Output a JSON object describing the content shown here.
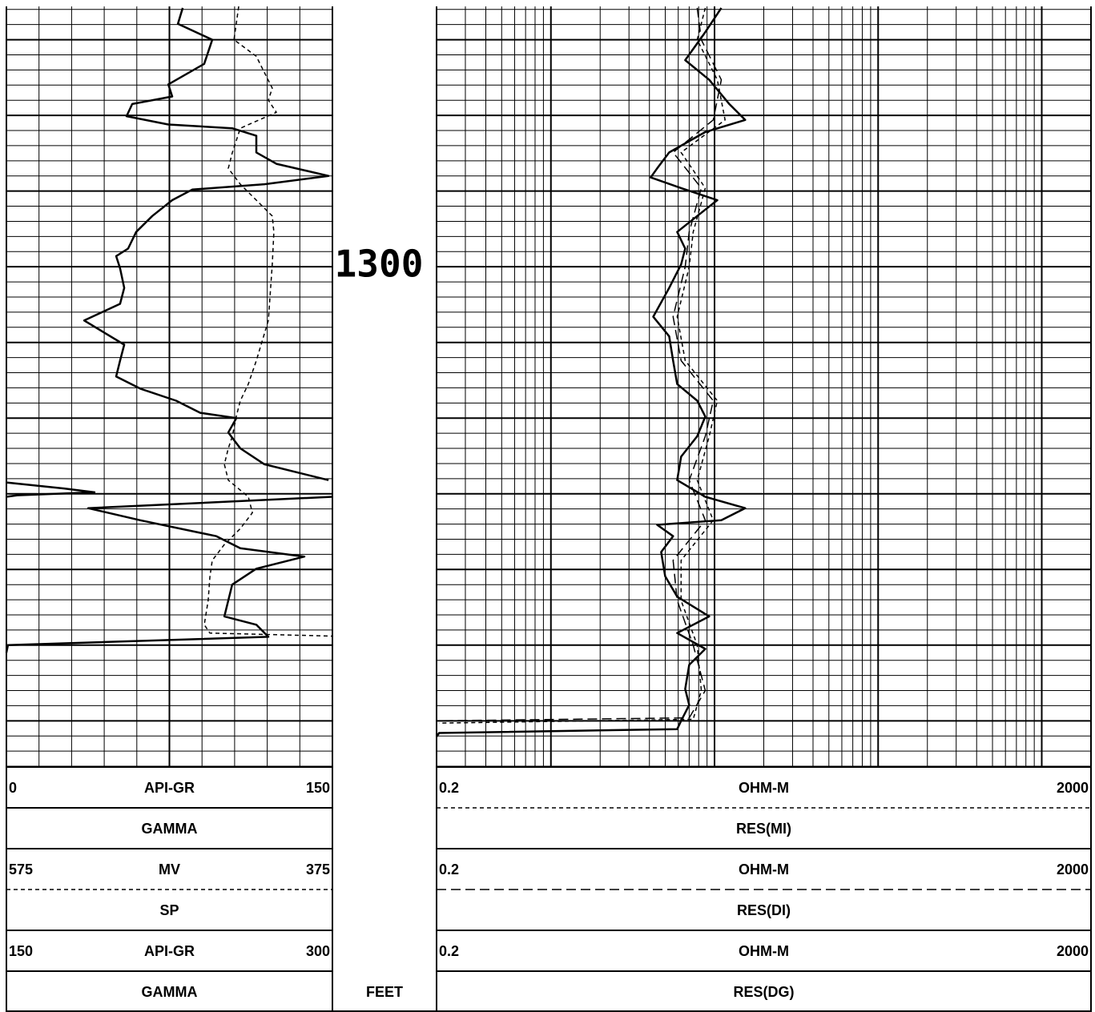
{
  "depth": {
    "label": 1300,
    "unit": "FEET",
    "lim": [
      1265.6,
      1366.1
    ],
    "ticks": [
      1266,
      1268,
      1270,
      1272,
      1274,
      1276,
      1278,
      1280,
      1282,
      1284,
      1286,
      1288,
      1290,
      1292,
      1294,
      1296,
      1298,
      1300,
      1302,
      1304,
      1306,
      1308,
      1310,
      1312,
      1314,
      1316,
      1318,
      1320,
      1322,
      1324,
      1326,
      1328,
      1330,
      1332,
      1334,
      1336,
      1338,
      1340,
      1342,
      1344,
      1346,
      1348,
      1350,
      1352,
      1354,
      1356,
      1358,
      1360,
      1362,
      1364,
      1366
    ]
  },
  "tracks": [
    {
      "log_scale": false,
      "xticks": [
        0,
        15,
        30,
        45,
        60,
        75,
        90,
        105,
        120,
        135,
        150
      ],
      "curves": [
        {
          "name": "GAMMA",
          "unit": "API-GR",
          "xlim": [
            0,
            150
          ],
          "line": "solid",
          "depth": [
            1265.8,
            1267.9,
            1270.0,
            1273.2,
            1275.9,
            1277.5,
            1278.5,
            1280.1,
            1281.2,
            1281.7,
            1282.7,
            1284.9,
            1286.4,
            1288.0,
            1289.1,
            1289.8,
            1291.2,
            1293.3,
            1295.4,
            1297.6,
            1298.6,
            1300.2,
            1302.8,
            1304.9,
            1307.1,
            1308.7,
            1310.3,
            1312.4,
            1314.5,
            1316.1,
            1317.7,
            1319.3,
            1320.0,
            1321.9,
            1324.0,
            1326.1,
            1328.2,
            1329.4,
            1330.4,
            1331.9,
            1333.5,
            1335.6,
            1337.2,
            1338.3,
            1339.9,
            1342.0,
            1344.1,
            1346.2,
            1347.3,
            1348.9,
            1350.0,
            1351.0
          ],
          "values": [
            81.1,
            78.9,
            94.7,
            91.0,
            74.5,
            76.3,
            57.9,
            55.3,
            74.5,
            103.9,
            115.0,
            115.0,
            124.2,
            148.2,
            118.7,
            85.5,
            76.3,
            67.1,
            59.7,
            56.0,
            50.5,
            52.3,
            54.2,
            52.3,
            35.8,
            45.0,
            54.2,
            52.3,
            50.5,
            61.6,
            78.1,
            89.2,
            105.8,
            102.1,
            107.6,
            118.7,
            148.2,
            null,
            150.0,
            37.6,
            61.6,
            96.6,
            107.6,
            137.1,
            115.0,
            103.9,
            102.1,
            100.3,
            115.0,
            120.5,
            0.7,
            0
          ]
        },
        {
          "name": "SP",
          "unit": "MV",
          "xlim": [
            575,
            375
          ],
          "line": "short-dash",
          "depth": [
            1265.6,
            1270.0,
            1272.2,
            1274.3,
            1276.4,
            1278.0,
            1279.6,
            1281.7,
            1284.9,
            1287.0,
            1289.1,
            1291.2,
            1293.3,
            1295.4,
            1299.7,
            1307.1,
            1312.4,
            1315.5,
            1317.7,
            1319.8,
            1322.4,
            1324.0,
            1326.1,
            1328.2,
            1330.4,
            1332.5,
            1334.6,
            1336.7,
            1338.8,
            1341.0,
            1344.1,
            1347.3,
            1348.4,
            1348.8,
            1366.1
          ],
          "values": [
            432.5,
            435.4,
            421.7,
            416.8,
            411.9,
            414.3,
            409.4,
            431.5,
            436.4,
            438.9,
            431.5,
            421.7,
            411.9,
            410.9,
            411.9,
            414.3,
            421.7,
            426.6,
            431.5,
            434.0,
            436.4,
            438.9,
            441.3,
            438.9,
            426.6,
            424.1,
            431.5,
            441.3,
            448.7,
            450.2,
            451.2,
            453.6,
            450.2,
            375,
            375
          ]
        },
        {
          "name": "GAMMA",
          "unit": "API-GR",
          "xlim": [
            150,
            300
          ],
          "line": "solid",
          "depth": [
            1328.5,
            1329.3,
            1329.8,
            1330.2,
            1330.4
          ],
          "values": [
            150,
            176.5,
            190.5,
            155,
            150
          ]
        }
      ]
    },
    {
      "log_scale": true,
      "xticks": [
        0.2,
        0.3,
        0.4,
        0.5,
        0.6,
        0.7,
        0.8,
        0.9,
        1,
        2,
        3,
        4,
        5,
        6,
        7,
        8,
        9,
        10,
        20,
        30,
        40,
        50,
        60,
        70,
        80,
        90,
        100,
        200,
        300,
        400,
        500,
        600,
        700,
        800,
        900,
        1000,
        2000
      ],
      "curves": [
        {
          "name": "RES(MI)",
          "unit": "OHM-M",
          "xlim": [
            0.2,
            2000
          ],
          "line": "short-dash",
          "depth": [
            1265.8,
            1270.0,
            1275.3,
            1280.6,
            1284.9,
            1289.6,
            1295.4,
            1300.0,
            1306.6,
            1312.4,
            1317.7,
            1322.4,
            1328.2,
            1333.5,
            1338.8,
            1344.1,
            1350.0,
            1356.0,
            1359.8,
            1360.3
          ],
          "values": [
            8.78,
            7.84,
            10.4,
            11.6,
            6.25,
            8.78,
            7.41,
            7.0,
            5.91,
            6.62,
            10.4,
            9.28,
            7.84,
            9.82,
            6.25,
            6.25,
            7.84,
            8.3,
            7.41,
            0.207
          ]
        },
        {
          "name": "RES(DI)",
          "unit": "OHM-M",
          "xlim": [
            0.2,
            2000
          ],
          "line": "long-dash",
          "depth": [
            1265.8,
            1270.0,
            1275.3,
            1280.6,
            1284.9,
            1289.6,
            1295.4,
            1300.0,
            1306.6,
            1312.4,
            1317.7,
            1322.4,
            1328.2,
            1333.5,
            1338.8,
            1344.1,
            1350.0,
            1356.0,
            1359.6,
            1360.0
          ],
          "values": [
            7.84,
            8.3,
            11.0,
            9.82,
            5.58,
            8.3,
            7.0,
            6.62,
            5.58,
            6.25,
            9.82,
            8.78,
            7.0,
            8.78,
            5.58,
            5.91,
            7.41,
            8.78,
            7.0,
            0.207
          ]
        },
        {
          "name": "RES(DG)",
          "unit": "OHM-M",
          "xlim": [
            0.2,
            2000
          ],
          "line": "solid",
          "depth": [
            1265.8,
            1269.0,
            1272.7,
            1275.3,
            1278.5,
            1280.6,
            1282.2,
            1284.9,
            1287.0,
            1288.2,
            1289.6,
            1291.2,
            1293.3,
            1295.4,
            1297.6,
            1299.7,
            1302.8,
            1306.6,
            1309.2,
            1312.4,
            1315.5,
            1317.7,
            1319.8,
            1322.4,
            1325.1,
            1328.2,
            1330.4,
            1331.9,
            1333.5,
            1334.1,
            1335.6,
            1337.7,
            1340.9,
            1343.6,
            1346.2,
            1348.4,
            1350.5,
            1352.6,
            1355.8,
            1357.9,
            1360.0,
            1361.1,
            1361.6,
            1362.1
          ],
          "values": [
            11.0,
            8.78,
            6.62,
            9.28,
            12.3,
            15.4,
            8.78,
            5.28,
            4.46,
            4.07,
            6.25,
            10.4,
            7.84,
            5.91,
            6.62,
            6.25,
            5.28,
            4.22,
            5.28,
            5.58,
            5.91,
            7.84,
            8.78,
            7.84,
            6.25,
            5.91,
            8.78,
            15.4,
            11.0,
            4.46,
            5.58,
            4.72,
            4.99,
            5.91,
            9.28,
            5.91,
            8.78,
            7.0,
            6.62,
            7.0,
            6.25,
            5.91,
            0.207,
            0.2
          ]
        }
      ]
    }
  ]
}
